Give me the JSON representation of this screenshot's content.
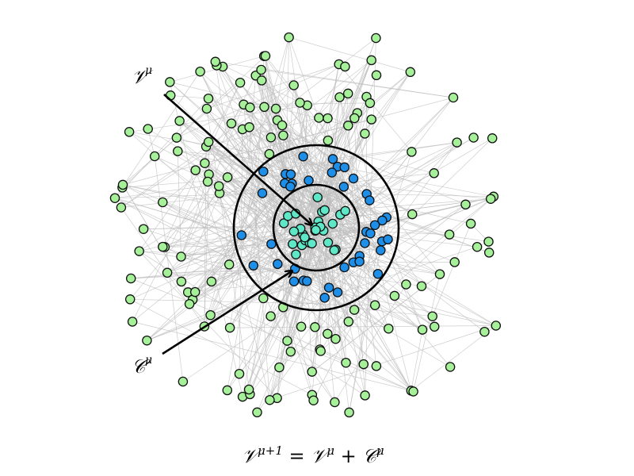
{
  "colors": {
    "outer_nodes": "#a6f09a",
    "shell_nodes": "#1e8fe8",
    "core_nodes": "#5ee8c8",
    "edges": "#bdbdbd",
    "rings": "#000000"
  },
  "labels": {
    "v_label": "𝒱",
    "v_sup": "μ",
    "c_label": "𝒞",
    "c_sup": "μ"
  },
  "caption": {
    "v1": "𝒱",
    "v1_sup": "μ+1",
    "eq": " = ",
    "v2": "𝒱",
    "v2_sup": "μ",
    "plus": " + ",
    "c": "𝒞",
    "c_sup": "μ"
  }
}
